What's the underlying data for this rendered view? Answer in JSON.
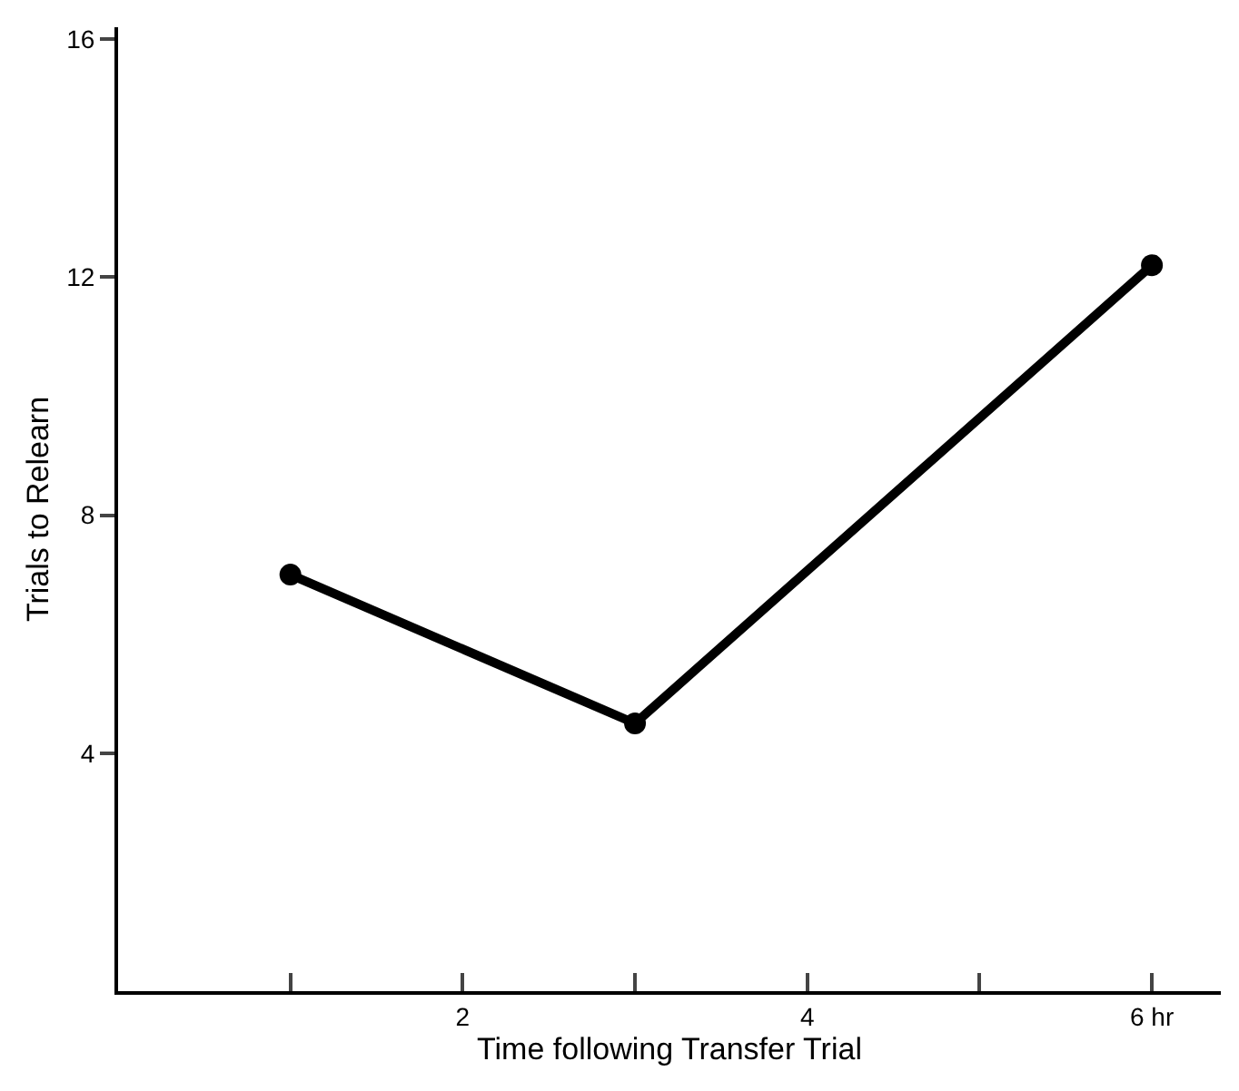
{
  "chart_data": {
    "type": "line",
    "xlabel": "Time following Transfer Trial",
    "ylabel": "Trials to Relearn",
    "x": [
      1,
      3,
      6
    ],
    "series": [
      {
        "color": "#000000",
        "values": [
          7.0,
          4.5,
          12.2
        ]
      }
    ],
    "xlim": [
      0,
      6.4
    ],
    "ylim": [
      0,
      16.2
    ],
    "xticks": [
      {
        "value": 1,
        "label": null
      },
      2,
      {
        "value": 3,
        "label": null
      },
      4,
      {
        "value": 5,
        "label": null
      },
      {
        "value": 6,
        "label": "6 hr"
      }
    ],
    "yticks": [
      4,
      8,
      12,
      16
    ],
    "marker": "circle",
    "line_style": "solid"
  }
}
